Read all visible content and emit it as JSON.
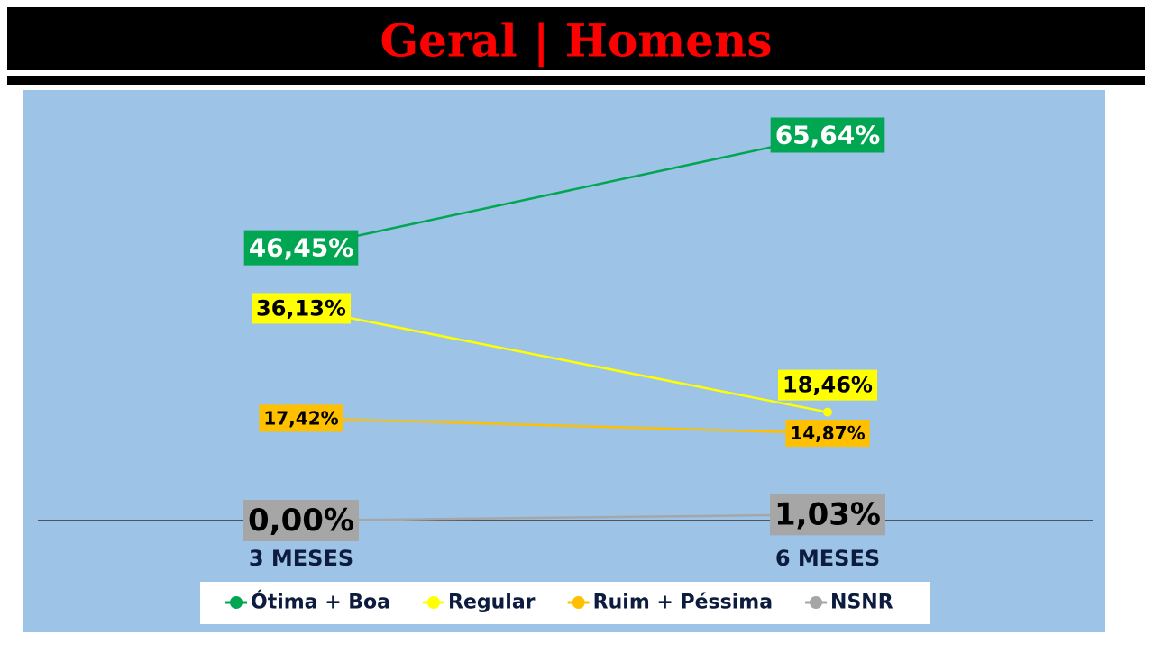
{
  "chart_data": {
    "type": "line",
    "title": "Geral | Homens",
    "categories": [
      "3 MESES",
      "6 MESES"
    ],
    "series": [
      {
        "name": "Ótima + Boa",
        "color": "#00a651",
        "values": [
          46.45,
          65.64
        ],
        "value_labels": [
          "46,45%",
          "65,64%"
        ]
      },
      {
        "name": "Regular",
        "color": "#ffff00",
        "values": [
          36.13,
          18.46
        ],
        "value_labels": [
          "36,13%",
          "18,46%"
        ]
      },
      {
        "name": "Ruim + Péssima",
        "color": "#ffc000",
        "values": [
          17.42,
          14.87
        ],
        "value_labels": [
          "17,42%",
          "14,87%"
        ]
      },
      {
        "name": "NSNR",
        "color": "#a6a6a6",
        "values": [
          0,
          1.03
        ],
        "value_labels": [
          "0,00%",
          "1,03%"
        ]
      }
    ]
  }
}
